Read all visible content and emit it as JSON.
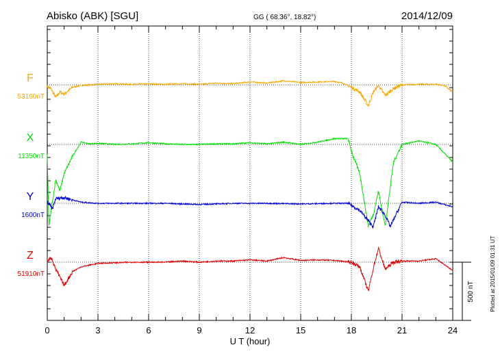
{
  "header": {
    "station": "Abisko (ABK)  [SGU]",
    "coords": "GG ( 68.36°,  18.82°)",
    "date": "2014/12/09"
  },
  "side_note": "Plotted at 2015/01/09 01:31  UT",
  "chart_data": {
    "type": "line",
    "xlabel": "U T (hour)",
    "xlim": [
      0,
      24
    ],
    "x_ticks": [
      "0",
      "3",
      "6",
      "9",
      "12",
      "15",
      "18",
      "21",
      "24"
    ],
    "grid": true,
    "scale_bar": {
      "label": "500 nT",
      "value": 500
    },
    "series": [
      {
        "name": "F",
        "baseline_label": "53160nT",
        "color": "#f5a800",
        "points": [
          [
            0,
            -10
          ],
          [
            0.25,
            -40
          ],
          [
            0.5,
            -110
          ],
          [
            0.75,
            -60
          ],
          [
            1,
            -80
          ],
          [
            1.5,
            -20
          ],
          [
            2,
            -5
          ],
          [
            3,
            5
          ],
          [
            4,
            10
          ],
          [
            5,
            5
          ],
          [
            6,
            8
          ],
          [
            7,
            5
          ],
          [
            8,
            10
          ],
          [
            9,
            5
          ],
          [
            10,
            15
          ],
          [
            11,
            10
          ],
          [
            12,
            25
          ],
          [
            13,
            15
          ],
          [
            14,
            35
          ],
          [
            15,
            20
          ],
          [
            16,
            25
          ],
          [
            17,
            30
          ],
          [
            17.5,
            15
          ],
          [
            18,
            -20
          ],
          [
            18.5,
            -60
          ],
          [
            19,
            -180
          ],
          [
            19.3,
            -60
          ],
          [
            19.6,
            -5
          ],
          [
            20,
            -90
          ],
          [
            20.5,
            -30
          ],
          [
            21,
            0
          ],
          [
            22,
            5
          ],
          [
            23,
            5
          ],
          [
            23.5,
            -5
          ],
          [
            24,
            -60
          ]
        ]
      },
      {
        "name": "X",
        "baseline_label": "11350nT",
        "color": "#00e000",
        "points": [
          [
            0,
            -100
          ],
          [
            0.1,
            -700
          ],
          [
            0.3,
            -500
          ],
          [
            0.5,
            -300
          ],
          [
            0.75,
            -400
          ],
          [
            1,
            -250
          ],
          [
            1.5,
            -100
          ],
          [
            2,
            20
          ],
          [
            2.5,
            5
          ],
          [
            3,
            10
          ],
          [
            4,
            0
          ],
          [
            5,
            5
          ],
          [
            6,
            15
          ],
          [
            7,
            5
          ],
          [
            8,
            0
          ],
          [
            9,
            0
          ],
          [
            10,
            5
          ],
          [
            11,
            5
          ],
          [
            12,
            15
          ],
          [
            13,
            5
          ],
          [
            14,
            20
          ],
          [
            15,
            0
          ],
          [
            16,
            20
          ],
          [
            17,
            50
          ],
          [
            17.8,
            50
          ],
          [
            18.1,
            -100
          ],
          [
            18.5,
            -250
          ],
          [
            19,
            -700
          ],
          [
            19.3,
            -600
          ],
          [
            19.6,
            -400
          ],
          [
            20,
            -700
          ],
          [
            20.5,
            -150
          ],
          [
            21,
            0
          ],
          [
            22,
            30
          ],
          [
            23,
            0
          ],
          [
            24,
            -150
          ]
        ]
      },
      {
        "name": "Y",
        "baseline_label": "1600nT",
        "color": "#0000dd",
        "points": [
          [
            0,
            20
          ],
          [
            0.3,
            -50
          ],
          [
            0.5,
            40
          ],
          [
            1,
            50
          ],
          [
            2,
            10
          ],
          [
            3,
            0
          ],
          [
            5,
            0
          ],
          [
            7,
            0
          ],
          [
            9,
            -10
          ],
          [
            11,
            0
          ],
          [
            13,
            0
          ],
          [
            15,
            -5
          ],
          [
            17,
            0
          ],
          [
            17.8,
            0
          ],
          [
            18.5,
            -60
          ],
          [
            19,
            -150
          ],
          [
            19.3,
            -200
          ],
          [
            19.6,
            -30
          ],
          [
            20,
            -100
          ],
          [
            20.3,
            -200
          ],
          [
            21,
            10
          ],
          [
            22,
            0
          ],
          [
            23,
            10
          ],
          [
            24,
            -30
          ]
        ]
      },
      {
        "name": "Z",
        "baseline_label": "51910nT",
        "color": "#e00000",
        "points": [
          [
            0,
            5
          ],
          [
            0.25,
            40
          ],
          [
            0.5,
            -60
          ],
          [
            1,
            -200
          ],
          [
            1.5,
            -80
          ],
          [
            2,
            -40
          ],
          [
            3,
            -10
          ],
          [
            4,
            -5
          ],
          [
            5,
            0
          ],
          [
            6,
            0
          ],
          [
            7,
            0
          ],
          [
            8,
            10
          ],
          [
            9,
            0
          ],
          [
            10,
            10
          ],
          [
            11,
            10
          ],
          [
            12,
            20
          ],
          [
            13,
            10
          ],
          [
            14,
            40
          ],
          [
            15,
            15
          ],
          [
            16,
            20
          ],
          [
            17,
            15
          ],
          [
            18,
            0
          ],
          [
            18.5,
            -40
          ],
          [
            19,
            -250
          ],
          [
            19.3,
            -50
          ],
          [
            19.6,
            120
          ],
          [
            20,
            -60
          ],
          [
            20.5,
            0
          ],
          [
            21,
            10
          ],
          [
            22,
            10
          ],
          [
            23,
            30
          ],
          [
            24,
            -70
          ]
        ]
      }
    ]
  }
}
